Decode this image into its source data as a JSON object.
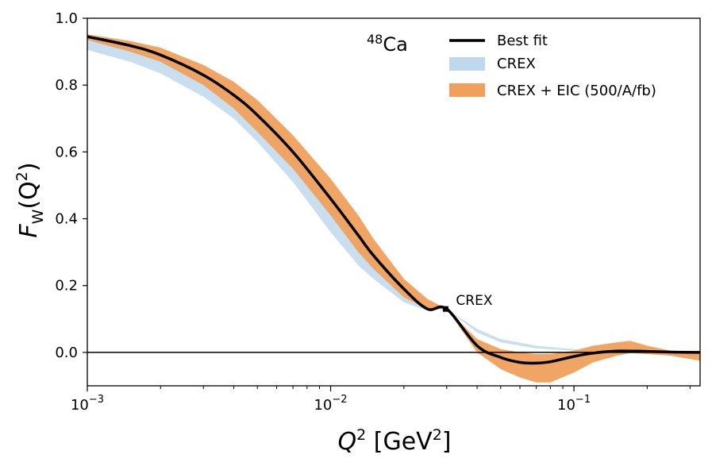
{
  "chart_data": {
    "type": "line",
    "xscale": "log",
    "xlim": [
      0.001,
      0.33
    ],
    "ylim": [
      -0.1,
      1.0
    ],
    "xlabel": {
      "base": "Q",
      "sup": "2",
      "rest": " [GeV",
      "unit_sup": "2",
      "end": "]"
    },
    "ylabel": {
      "main": "F",
      "sub": "W",
      "open": "(Q",
      "sup": "2",
      "close": ")"
    },
    "x_ticks": [
      {
        "value": 0.001,
        "base": "10",
        "exp": "−3"
      },
      {
        "value": 0.01,
        "base": "10",
        "exp": "−2"
      },
      {
        "value": 0.1,
        "base": "10",
        "exp": "−1"
      }
    ],
    "y_ticks": [
      {
        "value": 0.0,
        "label": "0.0"
      },
      {
        "value": 0.2,
        "label": "0.2"
      },
      {
        "value": 0.4,
        "label": "0.4"
      },
      {
        "value": 0.6,
        "label": "0.6"
      },
      {
        "value": 0.8,
        "label": "0.8"
      },
      {
        "value": 1.0,
        "label": "1.0"
      }
    ],
    "nucleus": {
      "mass": "48",
      "symbol": "Ca"
    },
    "series": [
      {
        "name": "Best fit",
        "kind": "line",
        "color": "#000000",
        "x": [
          0.001,
          0.0015,
          0.002,
          0.003,
          0.004,
          0.005,
          0.007,
          0.01,
          0.013,
          0.015,
          0.02,
          0.025,
          0.03,
          0.04,
          0.05,
          0.06,
          0.07,
          0.08,
          0.1,
          0.12,
          0.15,
          0.2,
          0.25,
          0.33
        ],
        "y": [
          0.945,
          0.918,
          0.89,
          0.83,
          0.77,
          0.71,
          0.6,
          0.46,
          0.35,
          0.29,
          0.19,
          0.13,
          0.13,
          0.02,
          -0.015,
          -0.03,
          -0.032,
          -0.028,
          -0.012,
          -0.002,
          0.004,
          0.003,
          0.001,
          0.0
        ]
      },
      {
        "name": "CREX",
        "kind": "band",
        "color": "#bfd8ec",
        "x": [
          0.001,
          0.0015,
          0.002,
          0.003,
          0.004,
          0.005,
          0.007,
          0.01,
          0.013,
          0.015,
          0.02,
          0.025,
          0.03,
          0.04,
          0.05,
          0.07,
          0.1,
          0.15,
          0.2,
          0.33
        ],
        "upper": [
          0.945,
          0.92,
          0.89,
          0.832,
          0.772,
          0.713,
          0.603,
          0.46,
          0.35,
          0.29,
          0.19,
          0.13,
          0.13,
          0.07,
          0.04,
          0.02,
          0.01,
          0.003,
          0.002,
          0.0
        ],
        "lower": [
          0.905,
          0.87,
          0.835,
          0.765,
          0.7,
          0.63,
          0.51,
          0.36,
          0.26,
          0.22,
          0.15,
          0.125,
          0.13,
          0.06,
          0.03,
          0.012,
          0.005,
          0.001,
          0.0,
          0.0
        ]
      },
      {
        "name": "CREX + EIC (500/A/fb)",
        "kind": "band",
        "color": "#f0a05c",
        "x": [
          0.001,
          0.0015,
          0.002,
          0.003,
          0.004,
          0.005,
          0.007,
          0.01,
          0.013,
          0.015,
          0.02,
          0.025,
          0.03,
          0.04,
          0.05,
          0.06,
          0.07,
          0.08,
          0.1,
          0.12,
          0.15,
          0.17,
          0.2,
          0.25,
          0.33
        ],
        "upper": [
          0.952,
          0.932,
          0.912,
          0.86,
          0.81,
          0.755,
          0.65,
          0.52,
          0.41,
          0.34,
          0.22,
          0.16,
          0.13,
          0.04,
          0.01,
          0.0,
          -0.005,
          -0.005,
          0.005,
          0.02,
          0.03,
          0.035,
          0.02,
          0.005,
          0.0
        ],
        "lower": [
          0.935,
          0.9,
          0.87,
          0.8,
          0.73,
          0.66,
          0.55,
          0.41,
          0.3,
          0.25,
          0.165,
          0.13,
          0.13,
          0.0,
          -0.05,
          -0.075,
          -0.09,
          -0.09,
          -0.06,
          -0.03,
          -0.01,
          -0.002,
          -0.005,
          -0.01,
          -0.025
        ]
      }
    ],
    "annotation": {
      "label": "CREX",
      "x": 0.0297,
      "y": 0.13
    },
    "legend": {
      "placement": "top-right"
    }
  }
}
